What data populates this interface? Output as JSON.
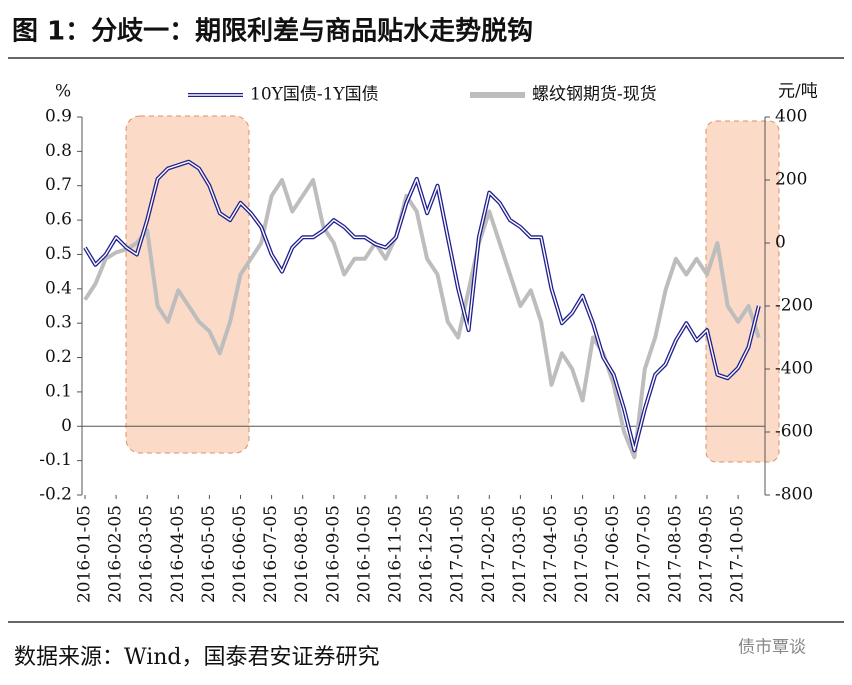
{
  "title": "图 1：分歧一：期限利差与商品贴水走势脱钩",
  "source": "数据来源：Wind，国泰君安证券研究",
  "watermark": "债市覃谈",
  "chart_data": {
    "type": "line",
    "ylabel": "%",
    "y2label": "元/吨",
    "categories": [
      "2016-01-05",
      null,
      null,
      "2016-02-05",
      null,
      null,
      "2016-03-05",
      null,
      null,
      "2016-04-05",
      null,
      null,
      "2016-05-05",
      null,
      null,
      "2016-06-05",
      null,
      null,
      "2016-07-05",
      null,
      null,
      "2016-08-05",
      null,
      null,
      "2016-09-05",
      null,
      null,
      "2016-10-05",
      null,
      null,
      "2016-11-05",
      null,
      null,
      "2016-12-05",
      null,
      null,
      "2017-01-05",
      null,
      null,
      "2017-02-05",
      null,
      null,
      "2017-03-05",
      null,
      null,
      "2017-04-05",
      null,
      null,
      "2017-05-05",
      null,
      null,
      "2017-06-05",
      null,
      null,
      "2017-07-05",
      null,
      null,
      "2017-08-05",
      null,
      null,
      "2017-09-05",
      null,
      null,
      "2017-10-05",
      null,
      null
    ],
    "series": [
      {
        "name": "10Y国债-1Y国债",
        "color": "#1f1f8f",
        "axis": "y",
        "values": [
          0.52,
          0.47,
          0.5,
          0.55,
          0.52,
          0.5,
          0.6,
          0.72,
          0.75,
          0.76,
          0.77,
          0.75,
          0.7,
          0.62,
          0.6,
          0.65,
          0.62,
          0.58,
          0.5,
          0.45,
          0.52,
          0.55,
          0.55,
          0.57,
          0.6,
          0.58,
          0.55,
          0.55,
          0.53,
          0.52,
          0.55,
          0.65,
          0.72,
          0.62,
          0.7,
          0.55,
          0.4,
          0.28,
          0.55,
          0.68,
          0.65,
          0.6,
          0.58,
          0.55,
          0.55,
          0.4,
          0.3,
          0.33,
          0.38,
          0.3,
          0.2,
          0.15,
          0.05,
          -0.07,
          0.05,
          0.15,
          0.18,
          0.25,
          0.3,
          0.25,
          0.28,
          0.15,
          0.14,
          0.17,
          0.23,
          0.35
        ]
      },
      {
        "name": "螺纹钢期货-现货",
        "color": "#bdbdbd",
        "axis": "y2",
        "values": [
          -180,
          -130,
          -50,
          -30,
          -20,
          0,
          40,
          -200,
          -250,
          -150,
          -200,
          -250,
          -280,
          -350,
          -250,
          -100,
          -50,
          0,
          150,
          200,
          100,
          150,
          200,
          50,
          0,
          -100,
          -50,
          -50,
          0,
          -50,
          20,
          150,
          100,
          -50,
          -100,
          -250,
          -300,
          -150,
          0,
          100,
          0,
          -100,
          -200,
          -150,
          -250,
          -450,
          -350,
          -400,
          -500,
          -300,
          -350,
          -450,
          -600,
          -680,
          -400,
          -300,
          -150,
          -50,
          -100,
          -50,
          -100,
          0,
          -200,
          -250,
          -200,
          -300
        ]
      }
    ],
    "ylim": [
      -0.2,
      0.9
    ],
    "yticks": [
      -0.2,
      -0.1,
      0,
      0.1,
      0.2,
      0.3,
      0.4,
      0.5,
      0.6,
      0.7,
      0.8,
      0.9
    ],
    "y2lim": [
      -800,
      400
    ],
    "y2ticks": [
      -800,
      -600,
      -400,
      -200,
      0,
      200,
      400
    ],
    "legend": "top"
  }
}
